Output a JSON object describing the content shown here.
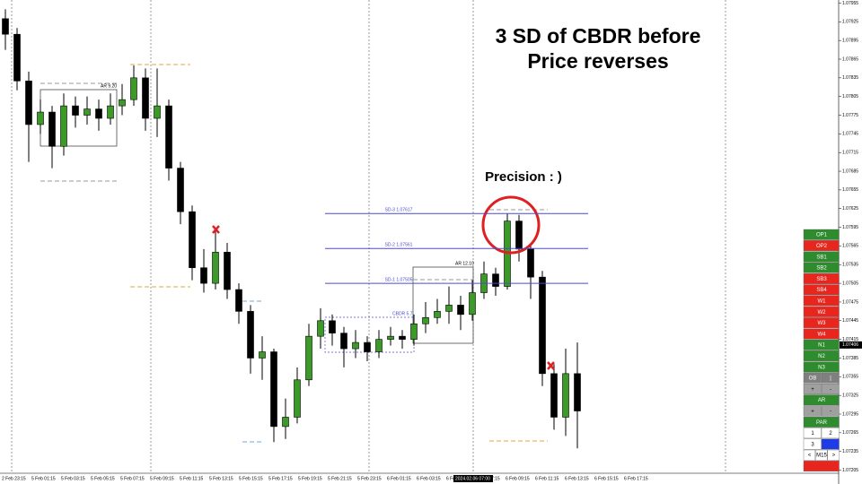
{
  "chart_data": {
    "type": "candlestick",
    "annotations": {
      "headline": [
        "3 SD of CBDR  before",
        "Price reverses"
      ],
      "precision": "Precision : )",
      "box1": "AR 9.20",
      "box2": "AR 12.10",
      "cbdr": "CBDR 5.7"
    },
    "ylim": [
      1.072,
      1.0796
    ],
    "yticks": [
      1.07955,
      1.07925,
      1.07895,
      1.07865,
      1.07835,
      1.07805,
      1.07775,
      1.07745,
      1.07715,
      1.07685,
      1.07655,
      1.07625,
      1.07595,
      1.07565,
      1.07535,
      1.07505,
      1.07475,
      1.07445,
      1.07415,
      1.07385,
      1.07355,
      1.07325,
      1.07295,
      1.07265,
      1.07235,
      1.07205
    ],
    "current_price": 1.07406,
    "x_labels": [
      "2 Feb 23:15",
      "5 Feb 01:15",
      "5 Feb 03:15",
      "5 Feb 05:15",
      "5 Feb 07:15",
      "5 Feb 09:15",
      "5 Feb 11:15",
      "5 Feb 13:15",
      "5 Feb 15:15",
      "5 Feb 17:15",
      "5 Feb 19:15",
      "5 Feb 21:15",
      "5 Feb 23:15",
      "6 Feb 01:15",
      "6 Feb 03:15",
      "6 Feb",
      "6 Feb 07:15",
      "6 Feb 09:15",
      "6 Feb 11:15",
      "6 Feb 13:15",
      "6 Feb 15:15",
      "6 Feb 17:15"
    ],
    "crosshair_time": "2024.02.06 07:00",
    "levels": [
      {
        "label": "SD-3 1.07617",
        "value": 1.07617
      },
      {
        "label": "SD-2 1.07561",
        "value": 1.07561
      },
      {
        "label": "SD-1 1.07505",
        "value": 1.07505
      }
    ],
    "bull_color": "#3c9a28",
    "bear_color": "#000000",
    "level_color": "#4b4bd0",
    "open": [
      1.0793,
      1.07905,
      1.0783,
      1.0776,
      1.0778,
      1.07725,
      1.0779,
      1.07775,
      1.07785,
      1.0777,
      1.0779,
      1.078,
      1.07835,
      1.0777,
      1.0779,
      1.0769,
      1.0762,
      1.0753,
      1.07505,
      1.07555,
      1.07495,
      1.0746,
      1.07385,
      1.07395,
      1.07275,
      1.0729,
      1.0735,
      1.0742,
      1.07445,
      1.07425,
      1.074,
      1.0741,
      1.07395,
      1.07415,
      1.0742,
      1.07415,
      1.0744,
      1.0745,
      1.0746,
      1.0747,
      1.07455,
      1.0749,
      1.0752,
      1.075,
      1.07605,
      1.0756,
      1.07515,
      1.0736,
      1.0729,
      1.0736
    ],
    "high": [
      1.07945,
      1.07915,
      1.07845,
      1.078,
      1.0779,
      1.0781,
      1.07805,
      1.07805,
      1.078,
      1.0781,
      1.07825,
      1.07855,
      1.0785,
      1.0785,
      1.078,
      1.077,
      1.0763,
      1.0756,
      1.0759,
      1.0757,
      1.07505,
      1.0747,
      1.0742,
      1.074,
      1.0732,
      1.0737,
      1.0744,
      1.07465,
      1.07455,
      1.07435,
      1.0743,
      1.0742,
      1.0743,
      1.07435,
      1.0743,
      1.07455,
      1.07475,
      1.0748,
      1.075,
      1.07485,
      1.0751,
      1.0754,
      1.0753,
      1.07617,
      1.07615,
      1.0757,
      1.07525,
      1.07375,
      1.074,
      1.0741
    ],
    "low": [
      1.0788,
      1.07815,
      1.077,
      1.07745,
      1.0769,
      1.0771,
      1.07755,
      1.0776,
      1.0775,
      1.0776,
      1.07775,
      1.0779,
      1.0775,
      1.0774,
      1.0767,
      1.076,
      1.0751,
      1.0749,
      1.07495,
      1.0748,
      1.0744,
      1.0736,
      1.0735,
      1.0725,
      1.07255,
      1.0728,
      1.0734,
      1.074,
      1.07405,
      1.0737,
      1.07385,
      1.0738,
      1.07385,
      1.07405,
      1.074,
      1.07405,
      1.07425,
      1.0744,
      1.0744,
      1.0743,
      1.07445,
      1.0748,
      1.07485,
      1.07495,
      1.0754,
      1.0748,
      1.0734,
      1.0727,
      1.0726,
      1.0724
    ],
    "close": [
      1.07905,
      1.0783,
      1.0776,
      1.0778,
      1.07725,
      1.0779,
      1.07775,
      1.07785,
      1.0777,
      1.0779,
      1.078,
      1.07835,
      1.0777,
      1.0779,
      1.0769,
      1.0762,
      1.0753,
      1.07505,
      1.07555,
      1.07495,
      1.0746,
      1.07385,
      1.07395,
      1.07275,
      1.0729,
      1.0735,
      1.0742,
      1.07445,
      1.07425,
      1.074,
      1.0741,
      1.07395,
      1.07415,
      1.0742,
      1.07415,
      1.0744,
      1.0745,
      1.0746,
      1.0747,
      1.07455,
      1.0749,
      1.0752,
      1.075,
      1.07605,
      1.0756,
      1.07515,
      1.0736,
      1.0729,
      1.0736,
      1.073
    ],
    "panel": [
      [
        {
          "label": "OP1",
          "color": "#2e8b2e"
        }
      ],
      [
        {
          "label": "OP2",
          "color": "#e8261e"
        }
      ],
      [
        {
          "label": "SB1",
          "color": "#2e8b2e"
        }
      ],
      [
        {
          "label": "SB2",
          "color": "#2e8b2e"
        }
      ],
      [
        {
          "label": "SB3",
          "color": "#e8261e"
        }
      ],
      [
        {
          "label": "SB4",
          "color": "#e8261e"
        }
      ],
      [
        {
          "label": "W1",
          "color": "#e8261e"
        }
      ],
      [
        {
          "label": "W2",
          "color": "#e8261e"
        }
      ],
      [
        {
          "label": "W3",
          "color": "#e8261e"
        }
      ],
      [
        {
          "label": "W4",
          "color": "#e8261e"
        }
      ],
      [
        {
          "label": "N1",
          "color": "#2e8b2e"
        }
      ],
      [
        {
          "label": "N2",
          "color": "#2e8b2e"
        }
      ],
      [
        {
          "label": "N3",
          "color": "#2e8b2e"
        }
      ],
      [
        {
          "label": "OB",
          "color": "#808080"
        },
        {
          "label": "|",
          "color": "#808080"
        }
      ],
      [
        {
          "label": "+",
          "color": "#a0a0a0"
        },
        {
          "label": "-",
          "color": "#a0a0a0"
        }
      ],
      [
        {
          "label": "AR",
          "color": "#2e8b2e"
        }
      ],
      [
        {
          "label": "+",
          "color": "#a0a0a0"
        },
        {
          "label": "-",
          "color": "#a0a0a0"
        }
      ],
      [
        {
          "label": "PAR",
          "color": "#2e8b2e"
        }
      ],
      [
        {
          "label": "1",
          "color": "#ffffff"
        },
        {
          "label": "2",
          "color": "#ffffff"
        }
      ],
      [
        {
          "label": "3",
          "color": "#ffffff"
        },
        {
          "color": "#1e3ce6"
        }
      ],
      [
        {
          "label": "<",
          "color": "#ffffff"
        },
        {
          "label": "M15",
          "color": "#ffffff"
        },
        {
          "label": ">",
          "color": "#ffffff"
        }
      ],
      [
        {
          "color": "#e8261e"
        }
      ]
    ]
  }
}
